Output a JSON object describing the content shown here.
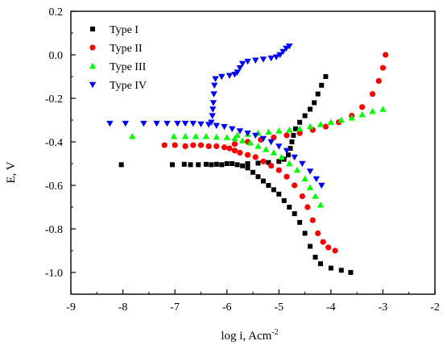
{
  "chart_data": {
    "type": "scatter",
    "title": "",
    "xlabel": "log i, Acm",
    "xlabel_sup": "-2",
    "ylabel": "E, V",
    "xlim": [
      -9,
      -2
    ],
    "ylim": [
      -1.1,
      0.2
    ],
    "x_ticks": [
      -9,
      -8,
      -7,
      -6,
      -5,
      -4,
      -3,
      -2
    ],
    "y_ticks": [
      0.2,
      0.0,
      -0.2,
      -0.4,
      -0.6,
      -0.8,
      -1.0
    ],
    "y_tick_labels": [
      "0.2",
      "0.0",
      "-0.2",
      "-0.4",
      "-0.6",
      "-0.8",
      "-1.0"
    ],
    "grid": false,
    "legend_position": "top-left",
    "series": [
      {
        "name": "Type I",
        "marker": "square",
        "color": "#000000",
        "points": [
          [
            -8.03,
            -0.505
          ],
          [
            -7.05,
            -0.505
          ],
          [
            -6.82,
            -0.503
          ],
          [
            -6.7,
            -0.505
          ],
          [
            -6.55,
            -0.505
          ],
          [
            -6.4,
            -0.503
          ],
          [
            -6.3,
            -0.505
          ],
          [
            -6.2,
            -0.503
          ],
          [
            -6.1,
            -0.505
          ],
          [
            -6.0,
            -0.5
          ],
          [
            -5.9,
            -0.5
          ],
          [
            -5.8,
            -0.505
          ],
          [
            -5.7,
            -0.51
          ],
          [
            -5.6,
            -0.52
          ],
          [
            -5.5,
            -0.54
          ],
          [
            -5.4,
            -0.56
          ],
          [
            -5.3,
            -0.58
          ],
          [
            -5.2,
            -0.6
          ],
          [
            -5.1,
            -0.62
          ],
          [
            -5.0,
            -0.64
          ],
          [
            -4.9,
            -0.67
          ],
          [
            -4.8,
            -0.7
          ],
          [
            -4.7,
            -0.73
          ],
          [
            -4.6,
            -0.77
          ],
          [
            -4.5,
            -0.82
          ],
          [
            -4.4,
            -0.88
          ],
          [
            -4.3,
            -0.93
          ],
          [
            -4.2,
            -0.96
          ],
          [
            -4.0,
            -0.98
          ],
          [
            -3.8,
            -0.99
          ],
          [
            -3.62,
            -1.0
          ],
          [
            -5.6,
            -0.5
          ],
          [
            -5.4,
            -0.498
          ],
          [
            -5.2,
            -0.495
          ],
          [
            -5.0,
            -0.49
          ],
          [
            -4.9,
            -0.48
          ],
          [
            -4.82,
            -0.46
          ],
          [
            -4.78,
            -0.43
          ],
          [
            -4.75,
            -0.4
          ],
          [
            -4.72,
            -0.37
          ],
          [
            -4.68,
            -0.34
          ],
          [
            -4.6,
            -0.31
          ],
          [
            -4.5,
            -0.28
          ],
          [
            -4.4,
            -0.25
          ],
          [
            -4.32,
            -0.22
          ],
          [
            -4.25,
            -0.18
          ],
          [
            -4.18,
            -0.14
          ],
          [
            -4.1,
            -0.1
          ]
        ]
      },
      {
        "name": "Type II",
        "marker": "circle",
        "color": "#ff0000",
        "points": [
          [
            -7.2,
            -0.415
          ],
          [
            -7.0,
            -0.415
          ],
          [
            -6.8,
            -0.42
          ],
          [
            -6.65,
            -0.415
          ],
          [
            -6.5,
            -0.415
          ],
          [
            -6.35,
            -0.42
          ],
          [
            -6.2,
            -0.42
          ],
          [
            -6.05,
            -0.425
          ],
          [
            -5.95,
            -0.43
          ],
          [
            -5.85,
            -0.44
          ],
          [
            -5.75,
            -0.45
          ],
          [
            -5.6,
            -0.46
          ],
          [
            -5.45,
            -0.47
          ],
          [
            -5.3,
            -0.49
          ],
          [
            -5.15,
            -0.51
          ],
          [
            -5.0,
            -0.53
          ],
          [
            -4.85,
            -0.56
          ],
          [
            -4.7,
            -0.6
          ],
          [
            -4.55,
            -0.65
          ],
          [
            -4.45,
            -0.7
          ],
          [
            -4.35,
            -0.76
          ],
          [
            -4.25,
            -0.82
          ],
          [
            -4.15,
            -0.86
          ],
          [
            -4.05,
            -0.885
          ],
          [
            -3.92,
            -0.9
          ],
          [
            -5.85,
            -0.41
          ],
          [
            -5.6,
            -0.4
          ],
          [
            -5.35,
            -0.39
          ],
          [
            -5.1,
            -0.38
          ],
          [
            -4.85,
            -0.37
          ],
          [
            -4.6,
            -0.36
          ],
          [
            -4.35,
            -0.345
          ],
          [
            -4.1,
            -0.33
          ],
          [
            -3.85,
            -0.31
          ],
          [
            -3.6,
            -0.28
          ],
          [
            -3.4,
            -0.24
          ],
          [
            -3.2,
            -0.18
          ],
          [
            -3.08,
            -0.12
          ],
          [
            -3.0,
            -0.06
          ],
          [
            -2.95,
            0.0
          ]
        ]
      },
      {
        "name": "Type III",
        "marker": "triangle-up",
        "color": "#00ff00",
        "points": [
          [
            -7.82,
            -0.375
          ],
          [
            -7.02,
            -0.375
          ],
          [
            -6.8,
            -0.375
          ],
          [
            -6.6,
            -0.375
          ],
          [
            -6.4,
            -0.375
          ],
          [
            -6.2,
            -0.378
          ],
          [
            -6.0,
            -0.38
          ],
          [
            -5.85,
            -0.385
          ],
          [
            -5.7,
            -0.395
          ],
          [
            -5.55,
            -0.405
          ],
          [
            -5.4,
            -0.42
          ],
          [
            -5.25,
            -0.435
          ],
          [
            -5.1,
            -0.45
          ],
          [
            -4.95,
            -0.47
          ],
          [
            -4.8,
            -0.5
          ],
          [
            -4.65,
            -0.53
          ],
          [
            -4.5,
            -0.57
          ],
          [
            -4.4,
            -0.61
          ],
          [
            -4.3,
            -0.65
          ],
          [
            -4.2,
            -0.69
          ],
          [
            -5.8,
            -0.37
          ],
          [
            -5.6,
            -0.365
          ],
          [
            -5.4,
            -0.36
          ],
          [
            -5.2,
            -0.355
          ],
          [
            -5.0,
            -0.35
          ],
          [
            -4.8,
            -0.345
          ],
          [
            -4.6,
            -0.34
          ],
          [
            -4.4,
            -0.33
          ],
          [
            -4.2,
            -0.32
          ],
          [
            -4.0,
            -0.31
          ],
          [
            -3.8,
            -0.3
          ],
          [
            -3.6,
            -0.29
          ],
          [
            -3.4,
            -0.275
          ],
          [
            -3.2,
            -0.26
          ],
          [
            -3.0,
            -0.25
          ]
        ]
      },
      {
        "name": "Type IV",
        "marker": "triangle-down",
        "color": "#0000ff",
        "points": [
          [
            -8.25,
            -0.315
          ],
          [
            -7.95,
            -0.315
          ],
          [
            -7.6,
            -0.315
          ],
          [
            -7.35,
            -0.315
          ],
          [
            -7.15,
            -0.315
          ],
          [
            -6.95,
            -0.315
          ],
          [
            -6.8,
            -0.315
          ],
          [
            -6.65,
            -0.315
          ],
          [
            -6.5,
            -0.318
          ],
          [
            -6.35,
            -0.32
          ],
          [
            -6.2,
            -0.325
          ],
          [
            -6.05,
            -0.33
          ],
          [
            -5.9,
            -0.34
          ],
          [
            -5.75,
            -0.35
          ],
          [
            -5.6,
            -0.36
          ],
          [
            -5.45,
            -0.37
          ],
          [
            -5.3,
            -0.385
          ],
          [
            -5.15,
            -0.4
          ],
          [
            -5.0,
            -0.42
          ],
          [
            -4.85,
            -0.44
          ],
          [
            -4.7,
            -0.47
          ],
          [
            -4.55,
            -0.5
          ],
          [
            -4.4,
            -0.535
          ],
          [
            -4.28,
            -0.57
          ],
          [
            -4.18,
            -0.6
          ],
          [
            -6.3,
            -0.31
          ],
          [
            -6.28,
            -0.28
          ],
          [
            -6.27,
            -0.25
          ],
          [
            -6.26,
            -0.22
          ],
          [
            -6.25,
            -0.18
          ],
          [
            -6.24,
            -0.14
          ],
          [
            -6.22,
            -0.11
          ],
          [
            -6.1,
            -0.1
          ],
          [
            -5.95,
            -0.095
          ],
          [
            -5.85,
            -0.09
          ],
          [
            -5.8,
            -0.08
          ],
          [
            -5.75,
            -0.06
          ],
          [
            -5.7,
            -0.04
          ],
          [
            -5.6,
            -0.03
          ],
          [
            -5.45,
            -0.025
          ],
          [
            -5.3,
            -0.02
          ],
          [
            -5.15,
            -0.015
          ],
          [
            -5.05,
            -0.01
          ],
          [
            -4.98,
            0.0
          ],
          [
            -4.92,
            0.015
          ],
          [
            -4.86,
            0.03
          ],
          [
            -4.8,
            0.04
          ]
        ]
      }
    ]
  }
}
